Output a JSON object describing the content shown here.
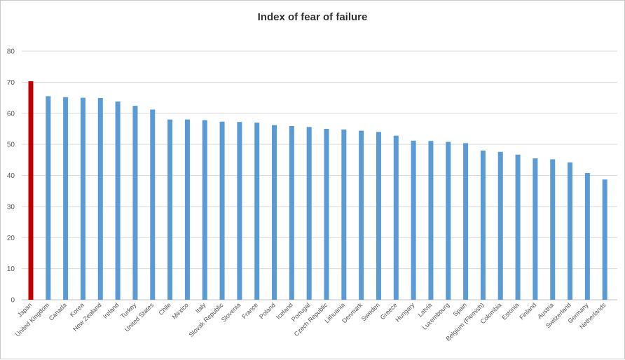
{
  "chart_data": {
    "type": "bar",
    "title": "Index of fear of failure",
    "xlabel": "",
    "ylabel": "",
    "ylim": [
      0,
      80
    ],
    "yticks": [
      0,
      10,
      20,
      30,
      40,
      50,
      60,
      70,
      80
    ],
    "grid": true,
    "legend": "none",
    "colors": {
      "bar": "#5b9bd5",
      "highlight": "#c00000"
    },
    "highlight_category": "Japan",
    "categories": [
      "Japan",
      "United Kingdom",
      "Canada",
      "Korea",
      "New Zealand",
      "Ireland",
      "Turkey",
      "United States",
      "Chile",
      "Mexico",
      "Italy",
      "Slovak Republic",
      "Slovenia",
      "France",
      "Poland",
      "Iceland",
      "Portugal",
      "Czech Republic",
      "Lithuania",
      "Denmark",
      "Sweden",
      "Greece",
      "Hungary",
      "Latvia",
      "Luxembourg",
      "Spain",
      "Belgium (Flemish)",
      "Colombia",
      "Estonia",
      "Finland",
      "Austria",
      "Switzerland",
      "Germany",
      "Netherlands"
    ],
    "values": [
      70.3,
      65.5,
      65.2,
      65.0,
      64.9,
      63.8,
      62.4,
      61.2,
      58.0,
      58.0,
      57.8,
      57.3,
      57.2,
      57.0,
      56.2,
      55.9,
      55.6,
      55.0,
      54.8,
      54.4,
      54.0,
      52.8,
      51.2,
      51.1,
      50.8,
      50.4,
      48.0,
      47.6,
      46.7,
      45.5,
      45.2,
      44.2,
      40.8,
      38.7
    ]
  }
}
